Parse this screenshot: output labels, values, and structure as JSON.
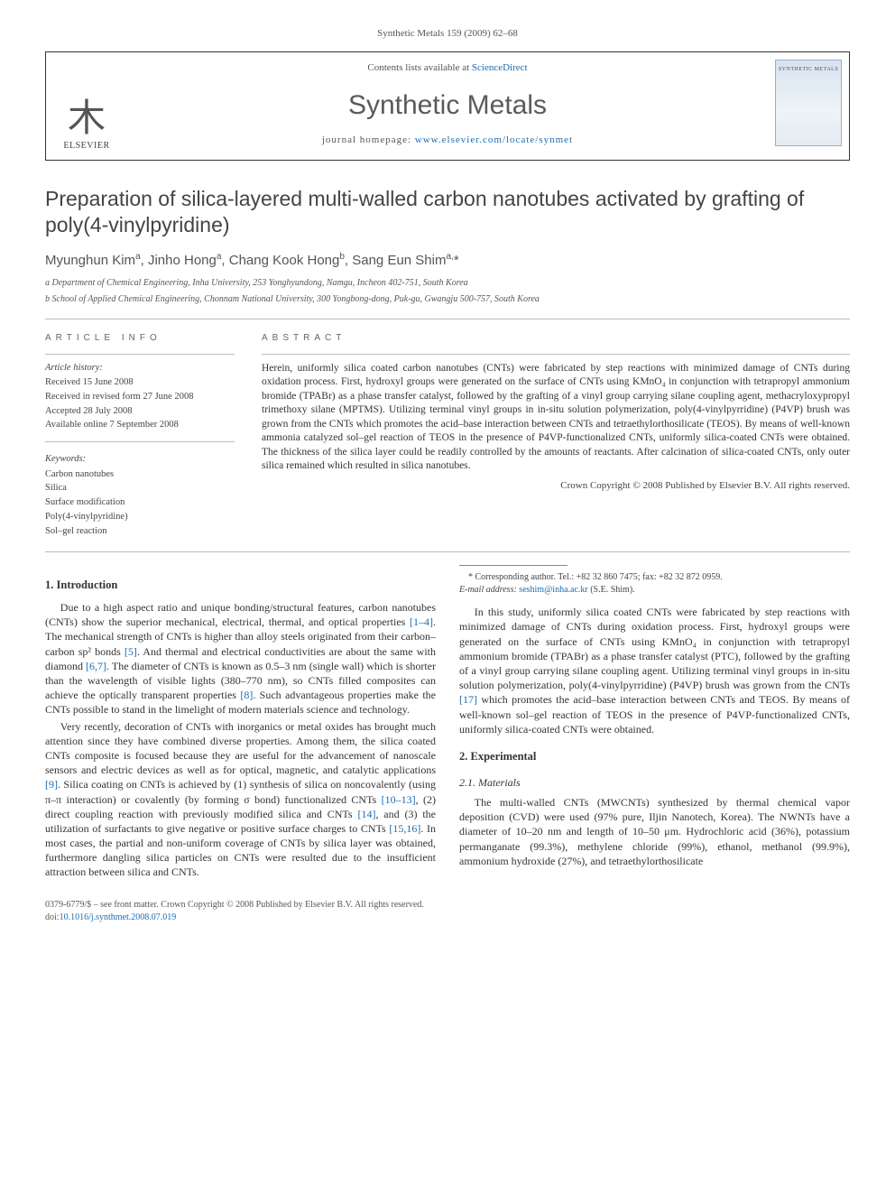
{
  "running_head": "Synthetic Metals 159 (2009) 62–68",
  "masthead": {
    "contents_prefix": "Contents lists available at ",
    "contents_link": "ScienceDirect",
    "journal": "Synthetic Metals",
    "homepage_prefix": "journal homepage: ",
    "homepage_url": "www.elsevier.com/locate/synmet",
    "publisher": "ELSEVIER",
    "cover_label": "SYNTHETIC METALS"
  },
  "title": "Preparation of silica-layered multi-walled carbon nanotubes activated by grafting of poly(4-vinylpyridine)",
  "authors_html": "Myunghun Kim<sup>a</sup>, Jinho Hong<sup>a</sup>, Chang Kook Hong<sup>b</sup>, Sang Eun Shim<sup>a,</sup>*",
  "affiliations": [
    "a Department of Chemical Engineering, Inha University, 253 Yonghyundong, Namgu, Incheon 402-751, South Korea",
    "b School of Applied Chemical Engineering, Chonnam National University, 300 Yongbong-dong, Puk-gu, Gwangju 500-757, South Korea"
  ],
  "article_info_head": "ARTICLE INFO",
  "abstract_head": "ABSTRACT",
  "history_label": "Article history:",
  "history": [
    "Received 15 June 2008",
    "Received in revised form 27 June 2008",
    "Accepted 28 July 2008",
    "Available online 7 September 2008"
  ],
  "keywords_label": "Keywords:",
  "keywords": [
    "Carbon nanotubes",
    "Silica",
    "Surface modification",
    "Poly(4-vinylpyridine)",
    "Sol–gel reaction"
  ],
  "abstract": "Herein, uniformly silica coated carbon nanotubes (CNTs) were fabricated by step reactions with minimized damage of CNTs during oxidation process. First, hydroxyl groups were generated on the surface of CNTs using KMnO₄ in conjunction with tetrapropyl ammonium bromide (TPABr) as a phase transfer catalyst, followed by the grafting of a vinyl group carrying silane coupling agent, methacryloxypropyl trimethoxy silane (MPTMS). Utilizing terminal vinyl groups in in-situ solution polymerization, poly(4-vinylpyrridine) (P4VP) brush was grown from the CNTs which promotes the acid–base interaction between CNTs and tetraethylorthosilicate (TEOS). By means of well-known ammonia catalyzed sol–gel reaction of TEOS in the presence of P4VP-functionalized CNTs, uniformly silica-coated CNTs were obtained. The thickness of the silica layer could be readily controlled by the amounts of reactants. After calcination of silica-coated CNTs, only outer silica remained which resulted in silica nanotubes.",
  "abstract_copyright": "Crown Copyright © 2008 Published by Elsevier B.V. All rights reserved.",
  "sections": {
    "intro_head": "1.  Introduction",
    "intro_p1": "Due to a high aspect ratio and unique bonding/structural features, carbon nanotubes (CNTs) show the superior mechanical, electrical, thermal, and optical properties [1–4]. The mechanical strength of CNTs is higher than alloy steels originated from their carbon–carbon sp² bonds [5]. And thermal and electrical conductivities are about the same with diamond [6,7]. The diameter of CNTs is known as 0.5–3 nm (single wall) which is shorter than the wavelength of visible lights (380–770 nm), so CNTs filled composites can achieve the optically transparent properties [8]. Such advantageous properties make the CNTs possible to stand in the limelight of modern materials science and technology.",
    "intro_p2": "Very recently, decoration of CNTs with inorganics or metal oxides has brought much attention since they have combined diverse properties. Among them, the silica coated CNTs composite is focused because they are useful for the advancement of nanoscale sensors and electric devices as well as for optical, magnetic, and catalytic applications [9]. Silica coating on CNTs is achieved by (1) synthesis of silica on noncovalently (using π–π interaction) or covalently (by forming σ bond) functionalized CNTs [10–13], (2) direct coupling reaction with previously modified silica and CNTs [14], and (3) the utilization of surfactants to give negative or positive surface charges to CNTs [15,16]. In most cases, the partial and non-uniform coverage of CNTs by silica layer was obtained, furthermore dangling silica particles on CNTs were resulted due to the insufficient attraction between silica and CNTs.",
    "intro_p3": "In this study, uniformly silica coated CNTs were fabricated by step reactions with minimized damage of CNTs during oxidation process. First, hydroxyl groups were generated on the surface of CNTs using KMnO₄ in conjunction with tetrapropyl ammonium bromide (TPABr) as a phase transfer catalyst (PTC), followed by the grafting of a vinyl group carrying silane coupling agent. Utilizing terminal vinyl groups in in-situ solution polymerization, poly(4-vinylpyrridine) (P4VP) brush was grown from the CNTs [17] which promotes the acid–base interaction between CNTs and TEOS. By means of well-known sol–gel reaction of TEOS in the presence of P4VP-functionalized CNTs, uniformly silica-coated CNTs were obtained.",
    "exp_head": "2.  Experimental",
    "materials_head": "2.1.  Materials",
    "materials_p1": "The multi-walled CNTs (MWCNTs) synthesized by thermal chemical vapor deposition (CVD) were used (97% pure, Iljin Nanotech, Korea). The NWNTs have a diameter of 10–20 nm and length of 10–50 μm. Hydrochloric acid (36%), potassium permanganate (99.3%), methylene chloride (99%), ethanol, methanol (99.9%), ammonium hydroxide (27%), and tetraethylorthosilicate"
  },
  "footnote": {
    "corr": "* Corresponding author. Tel.: +82 32 860 7475; fax: +82 32 872 0959.",
    "email_label": "E-mail address: ",
    "email": "seshim@inha.ac.kr",
    "email_suffix": " (S.E. Shim)."
  },
  "footer": {
    "line1": "0379-6779/$ – see front matter. Crown Copyright © 2008 Published by Elsevier B.V. All rights reserved.",
    "doi_label": "doi:",
    "doi": "10.1016/j.synthmet.2008.07.019"
  },
  "citation_links": [
    "[1–4]",
    "[5]",
    "[6,7]",
    "[8]",
    "[9]",
    "[10–13]",
    "[14]",
    "[15,16]",
    "[17]"
  ],
  "colors": {
    "link": "#1a6db3",
    "text": "#333333",
    "muted": "#555555",
    "rule": "#bbbbbb"
  }
}
